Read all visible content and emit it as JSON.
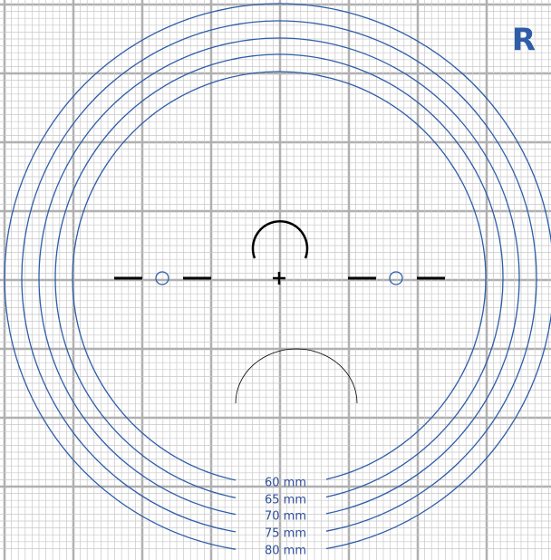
{
  "corner_label": "R",
  "rings": [
    {
      "label": "60 mm"
    },
    {
      "label": "65 mm"
    },
    {
      "label": "70 mm"
    },
    {
      "label": "75 mm"
    },
    {
      "label": "80 mm"
    }
  ]
}
